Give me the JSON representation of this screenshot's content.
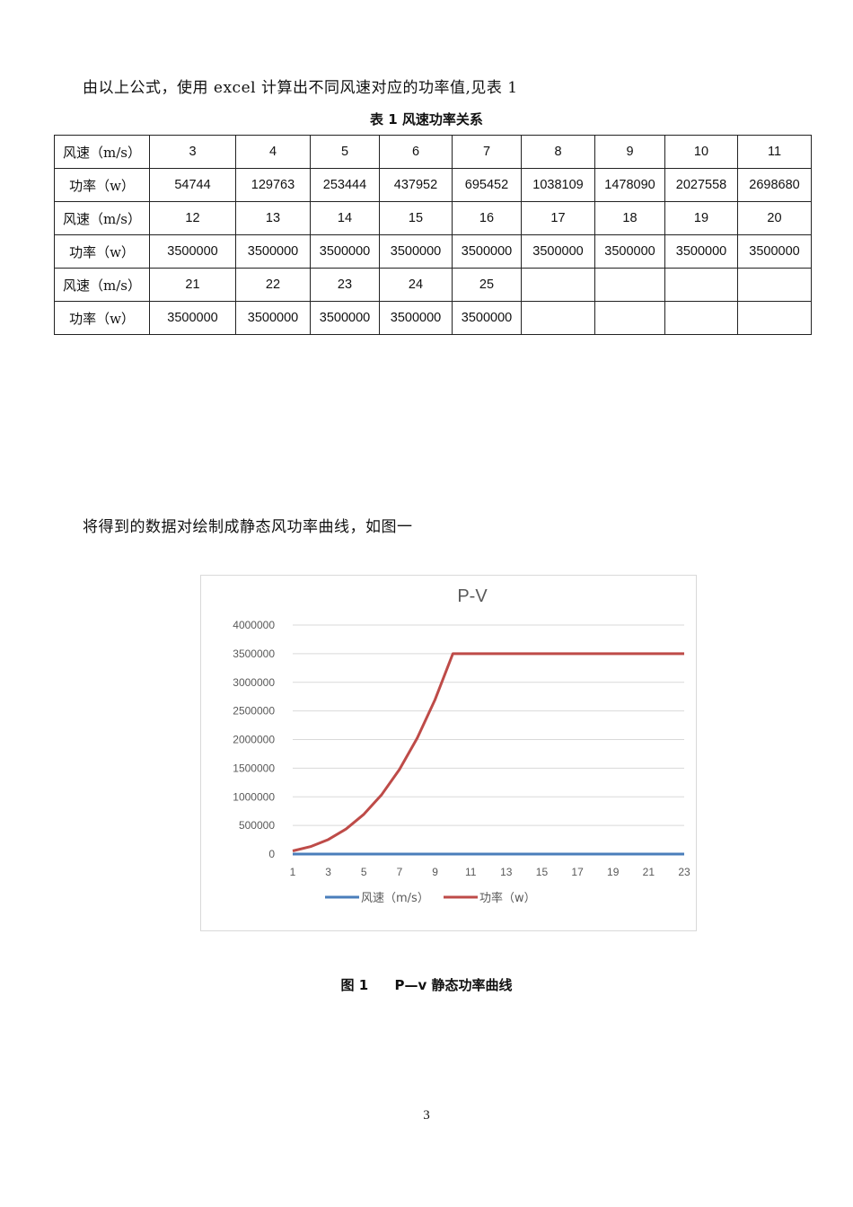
{
  "paragraph1": "由以上公式，使用 excel 计算出不同风速对应的功率值,见表 1",
  "table_caption": "表 1  风速功率关系",
  "table": {
    "rows": [
      {
        "label": "风速（m/s）",
        "cells": [
          "3",
          "4",
          "5",
          "6",
          "7",
          "8",
          "9",
          "10",
          "11"
        ]
      },
      {
        "label": "功率（w）",
        "cells": [
          "54744",
          "129763",
          "253444",
          "437952",
          "695452",
          "1038109",
          "1478090",
          "2027558",
          "2698680"
        ]
      },
      {
        "label": "风速（m/s）",
        "cells": [
          "12",
          "13",
          "14",
          "15",
          "16",
          "17",
          "18",
          "19",
          "20"
        ]
      },
      {
        "label": "功率（w）",
        "cells": [
          "3500000",
          "3500000",
          "3500000",
          "3500000",
          "3500000",
          "3500000",
          "3500000",
          "3500000",
          "3500000"
        ]
      },
      {
        "label": "风速（m/s）",
        "cells": [
          "21",
          "22",
          "23",
          "24",
          "25",
          "",
          "",
          "",
          ""
        ]
      },
      {
        "label": "功率（w）",
        "cells": [
          "3500000",
          "3500000",
          "3500000",
          "3500000",
          "3500000",
          "",
          "",
          "",
          ""
        ]
      }
    ]
  },
  "paragraph2": "将得到的数据对绘制成静态风功率曲线，如图一",
  "chart_data": {
    "type": "line",
    "title": "P-V",
    "x": [
      1,
      2,
      3,
      4,
      5,
      6,
      7,
      8,
      9,
      10,
      11,
      12,
      13,
      14,
      15,
      16,
      17,
      18,
      19,
      20,
      21,
      22,
      23
    ],
    "x_tick_labels": [
      "1",
      "3",
      "5",
      "7",
      "9",
      "11",
      "13",
      "15",
      "17",
      "19",
      "21",
      "23"
    ],
    "y_tick_labels": [
      "0",
      "500000",
      "1000000",
      "1500000",
      "2000000",
      "2500000",
      "3000000",
      "3500000",
      "4000000"
    ],
    "ylim": [
      0,
      4000000
    ],
    "grid": "horizontal",
    "legend_position": "bottom",
    "series": [
      {
        "name": "风速（m/s）",
        "color": "#4a7ebb",
        "values": [
          3,
          4,
          5,
          6,
          7,
          8,
          9,
          10,
          11,
          12,
          13,
          14,
          15,
          16,
          17,
          18,
          19,
          20,
          21,
          22,
          23,
          24,
          25
        ]
      },
      {
        "name": "功率（w）",
        "color": "#be4b48",
        "values": [
          54744,
          129763,
          253444,
          437952,
          695452,
          1038109,
          1478090,
          2027558,
          2698680,
          3500000,
          3500000,
          3500000,
          3500000,
          3500000,
          3500000,
          3500000,
          3500000,
          3500000,
          3500000,
          3500000,
          3500000,
          3500000,
          3500000
        ]
      }
    ]
  },
  "figure_caption": {
    "number": "图 1",
    "text": "P—v 静态功率曲线"
  },
  "page_number": "3"
}
